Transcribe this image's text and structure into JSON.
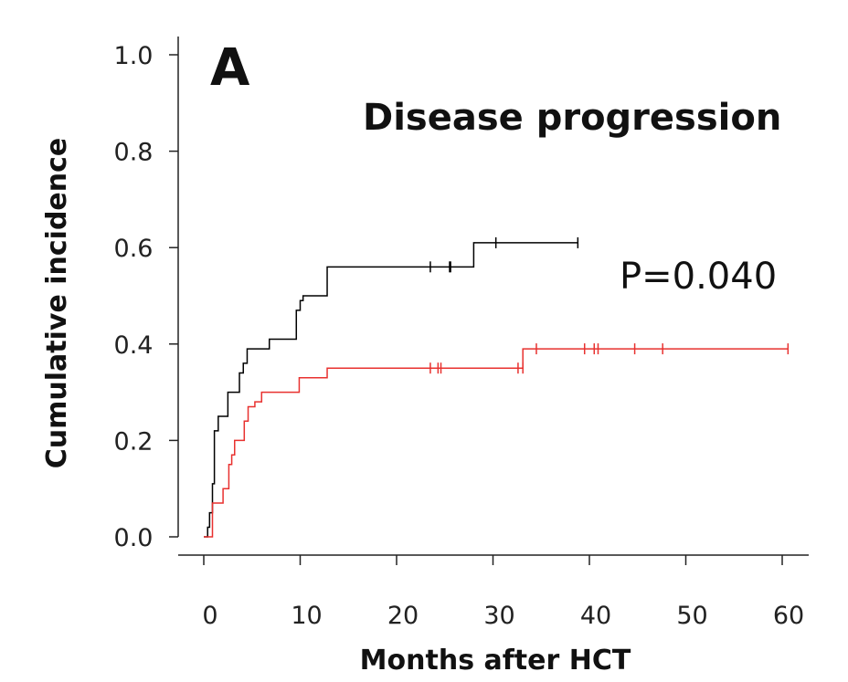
{
  "chart_data": {
    "type": "line",
    "step": true,
    "panel_label": "A",
    "title": "Disease progression",
    "annotation": "P=0.040",
    "xlabel": "Months after HCT",
    "ylabel": "Cumulative incidence",
    "xlim": [
      -1,
      62
    ],
    "ylim": [
      0,
      1.0
    ],
    "xticks": [
      0,
      10,
      20,
      30,
      40,
      50,
      60
    ],
    "yticks": [
      "0.0",
      "0.2",
      "0.4",
      "0.6",
      "0.8",
      "1.0"
    ],
    "grid": false,
    "legend": "none",
    "series": [
      {
        "color": "#000000",
        "x": [
          0,
          0.4,
          0.6,
          0.9,
          1.1,
          1.5,
          2.5,
          3.7,
          4.1,
          4.5,
          6.8,
          9.6,
          10.0,
          10.3,
          10.7,
          12.8,
          28.0,
          38.8
        ],
        "y": [
          0,
          0.02,
          0.05,
          0.11,
          0.22,
          0.25,
          0.3,
          0.34,
          0.36,
          0.39,
          0.41,
          0.47,
          0.49,
          0.5,
          0.5,
          0.56,
          0.61,
          0.61
        ],
        "censor_x": [
          23.5,
          25.5,
          25.6,
          30.3,
          38.8
        ],
        "censor_y": [
          0.56,
          0.56,
          0.56,
          0.61,
          0.61
        ]
      },
      {
        "color": "#e8312f",
        "x": [
          0,
          0.9,
          1.2,
          2.0,
          2.6,
          2.9,
          3.2,
          4.2,
          4.6,
          5.3,
          6.0,
          9.9,
          12.8,
          33.1,
          60.6
        ],
        "y": [
          0,
          0.07,
          0.07,
          0.1,
          0.15,
          0.17,
          0.2,
          0.24,
          0.27,
          0.28,
          0.3,
          0.33,
          0.35,
          0.39,
          0.39
        ],
        "censor_x": [
          23.5,
          24.3,
          24.6,
          32.6,
          33.1,
          34.5,
          39.5,
          40.5,
          40.9,
          44.7,
          47.6,
          60.6
        ],
        "censor_y": [
          0.35,
          0.35,
          0.35,
          0.35,
          0.35,
          0.39,
          0.39,
          0.39,
          0.39,
          0.39,
          0.39,
          0.39
        ]
      }
    ]
  }
}
